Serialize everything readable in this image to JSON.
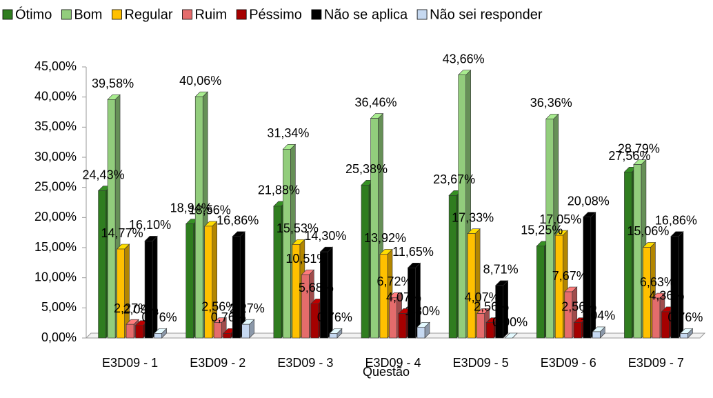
{
  "chart_data": {
    "type": "bar3d",
    "categories": [
      "E3D09 - 1",
      "E3D09 - 2",
      "E3D09 - 3",
      "E3D09 - 4",
      "E3D09 - 5",
      "E3D09 - 6",
      "E3D09 - 7"
    ],
    "x_label": "Questão",
    "series": [
      {
        "name": "Ótimo",
        "color": "#2f7d1f",
        "values": [
          24.43,
          18.94,
          21.88,
          25.38,
          23.67,
          15.25,
          27.56
        ],
        "value_labels": [
          "24,43%",
          "18,94%",
          "21,88%",
          "25,38%",
          "23,67%",
          "15,25%",
          "27,56%"
        ]
      },
      {
        "name": "Bom",
        "color": "#92cd7c",
        "values": [
          39.58,
          40.06,
          31.34,
          36.46,
          43.66,
          36.36,
          28.79
        ],
        "value_labels": [
          "39,58%",
          "40,06%",
          "31,34%",
          "36,46%",
          "43,66%",
          "36,36%",
          "28,79%"
        ]
      },
      {
        "name": "Regular",
        "color": "#ffc000",
        "values": [
          14.77,
          18.56,
          15.53,
          13.92,
          17.33,
          17.05,
          15.06
        ],
        "value_labels": [
          "14,77%",
          "18,56%",
          "15,53%",
          "13,92%",
          "17,33%",
          "17,05%",
          "15,06%"
        ]
      },
      {
        "name": "Ruim",
        "color": "#e46c6c",
        "values": [
          2.27,
          2.56,
          10.51,
          6.72,
          4.07,
          7.67,
          6.63
        ],
        "value_labels": [
          "2,27%",
          "2,56%",
          "10,51%",
          "6,72%",
          "4,07%",
          "7,67%",
          "6,63%"
        ]
      },
      {
        "name": "Péssimo",
        "color": "#a50000",
        "values": [
          2.09,
          0.76,
          5.68,
          4.07,
          2.56,
          2.56,
          4.36
        ],
        "value_labels": [
          "2,09%",
          "0,76%",
          "5,68%",
          "4,07%",
          "2,56%",
          "2,56%",
          "4,36%"
        ]
      },
      {
        "name": "Não se aplica",
        "color": "#000000",
        "values": [
          16.1,
          16.86,
          14.3,
          11.65,
          8.71,
          20.08,
          16.86
        ],
        "value_labels": [
          "16,10%",
          "16,86%",
          "14,30%",
          "11,65%",
          "8,71%",
          "20,08%",
          "16,86%"
        ]
      },
      {
        "name": "Não sei responder",
        "color": "#c6d9f1",
        "values": [
          0.76,
          2.27,
          0.76,
          1.8,
          0.0,
          1.04,
          0.76
        ],
        "value_labels": [
          "0,76%",
          "2,27%",
          "0,76%",
          "1,80%",
          "0,00%",
          "1,04%",
          "0,76%"
        ]
      }
    ],
    "ylim": [
      0,
      45
    ],
    "yticks": [
      {
        "value": 0,
        "label": "0,00%"
      },
      {
        "value": 5,
        "label": "5,00%"
      },
      {
        "value": 10,
        "label": "10,00%"
      },
      {
        "value": 15,
        "label": "15,00%"
      },
      {
        "value": 20,
        "label": "20,00%"
      },
      {
        "value": 25,
        "label": "25,00%"
      },
      {
        "value": 30,
        "label": "30,00%"
      },
      {
        "value": 35,
        "label": "35,00%"
      },
      {
        "value": 40,
        "label": "40,00%"
      },
      {
        "value": 45,
        "label": "45,00%"
      }
    ],
    "legend": "top"
  }
}
